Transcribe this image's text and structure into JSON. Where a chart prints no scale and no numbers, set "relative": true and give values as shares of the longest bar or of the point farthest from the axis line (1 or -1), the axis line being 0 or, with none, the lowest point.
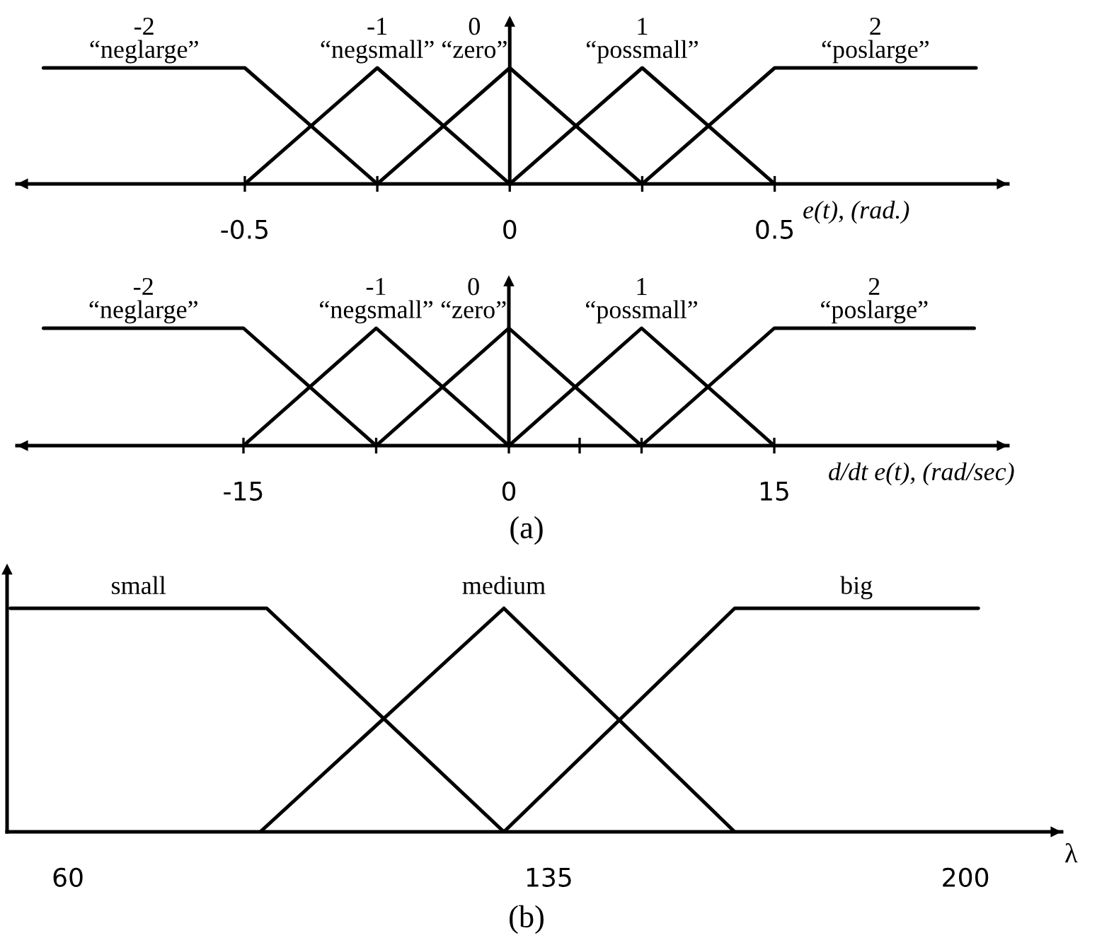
{
  "chart_data": [
    {
      "type": "line",
      "relative": true,
      "xlabel": "e(t), (rad.)",
      "xlim": [
        -0.93,
        0.94
      ],
      "xticks": [
        -0.5,
        {
          "value": -0.25,
          "label": null
        },
        0,
        {
          "value": 0.25,
          "label": null
        },
        0.5
      ],
      "series": [
        {
          "name": "-2\n“neglarge”",
          "color": "#000000",
          "x": [
            -0.88,
            -0.5,
            -0.25
          ],
          "values": [
            1,
            1,
            0
          ]
        },
        {
          "name": "-1\n“negsmall”",
          "color": "#000000",
          "x": [
            -0.5,
            -0.25,
            0
          ],
          "values": [
            0,
            1,
            0
          ]
        },
        {
          "name": "0\n“zero”",
          "color": "#000000",
          "x": [
            -0.25,
            0,
            0.25
          ],
          "values": [
            0,
            1,
            0
          ]
        },
        {
          "name": "1\n“possmall”",
          "color": "#000000",
          "x": [
            0,
            0.25,
            0.5
          ],
          "values": [
            0,
            1,
            0
          ]
        },
        {
          "name": "2\n“poslarge”",
          "color": "#000000",
          "x": [
            0.25,
            0.5,
            0.88
          ],
          "values": [
            0,
            1,
            1
          ]
        }
      ]
    },
    {
      "type": "line",
      "relative": true,
      "xlabel": "d/dt e(t), (rad/sec)",
      "xlim": [
        -27.8,
        28.2
      ],
      "xticks": [
        -15,
        {
          "value": -7.5,
          "label": null
        },
        0,
        {
          "value": 4,
          "label": null
        },
        {
          "value": 7.5,
          "label": null
        },
        15
      ],
      "annotations": [
        "(a)"
      ],
      "series": [
        {
          "name": "-2\n“neglarge”",
          "color": "#000000",
          "x": [
            -26.3,
            -15,
            -7.5
          ],
          "values": [
            1,
            1,
            0
          ]
        },
        {
          "name": "-1\n“negsmall”",
          "color": "#000000",
          "x": [
            -15,
            -7.5,
            0
          ],
          "values": [
            0,
            1,
            0
          ]
        },
        {
          "name": "0\n“zero”",
          "color": "#000000",
          "x": [
            -7.5,
            0,
            7.5
          ],
          "values": [
            0,
            1,
            0
          ]
        },
        {
          "name": "1\n“possmall”",
          "color": "#000000",
          "x": [
            0,
            7.5,
            15
          ],
          "values": [
            0,
            1,
            0
          ]
        },
        {
          "name": "2\n“poslarge”",
          "color": "#000000",
          "x": [
            7.5,
            15,
            26.3
          ],
          "values": [
            0,
            1,
            1
          ]
        }
      ]
    },
    {
      "type": "line",
      "relative": true,
      "xlabel": "λ",
      "xlim": [
        50.5,
        215
      ],
      "xticks": [
        60,
        135,
        200
      ],
      "annotations": [
        "(b)"
      ],
      "series": [
        {
          "name": "small",
          "color": "#000000",
          "x": [
            51,
            91,
            128
          ],
          "values": [
            1,
            1,
            0
          ]
        },
        {
          "name": "medium",
          "color": "#000000",
          "x": [
            90,
            128,
            164
          ],
          "values": [
            0,
            1,
            0
          ]
        },
        {
          "name": "big",
          "color": "#000000",
          "x": [
            128,
            164,
            202
          ],
          "values": [
            0,
            1,
            1
          ]
        }
      ]
    }
  ]
}
